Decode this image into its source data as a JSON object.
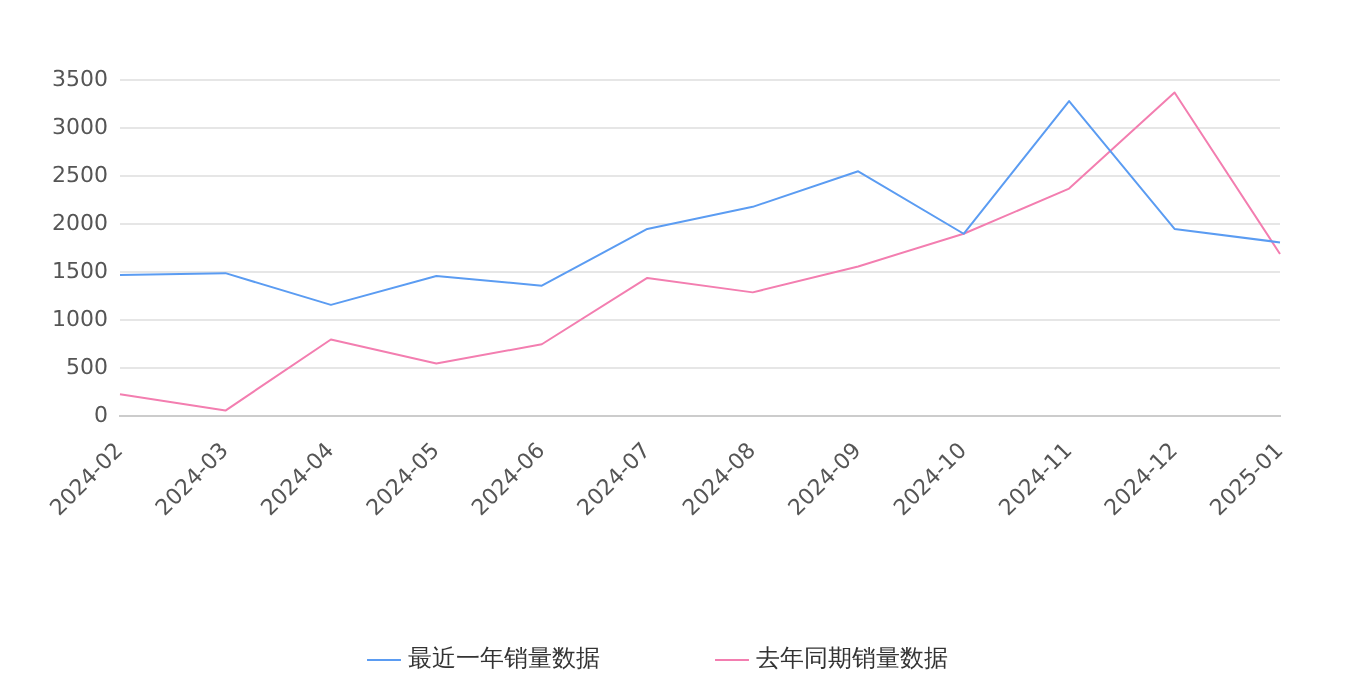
{
  "chart_data": {
    "type": "line",
    "categories": [
      "2024-02",
      "2024-03",
      "2024-04",
      "2024-05",
      "2024-06",
      "2024-07",
      "2024-08",
      "2024-09",
      "2024-10",
      "2024-11",
      "2024-12",
      "2025-01"
    ],
    "series": [
      {
        "name": "最近一年销量数据",
        "color": "#5b9cf2",
        "values": [
          1470,
          1490,
          1160,
          1460,
          1360,
          1950,
          2180,
          2550,
          1900,
          3280,
          1950,
          1810
        ]
      },
      {
        "name": "去年同期销量数据",
        "color": "#f37eb0",
        "values": [
          230,
          60,
          800,
          550,
          750,
          1440,
          1290,
          1560,
          1900,
          2370,
          3370,
          1690
        ]
      }
    ],
    "ylim": [
      0,
      3500
    ],
    "yticks": [
      0,
      500,
      1000,
      1500,
      2000,
      2500,
      3000,
      3500
    ],
    "grid": "y",
    "legend": "bottom",
    "marker": "none",
    "line_style": "solid"
  }
}
